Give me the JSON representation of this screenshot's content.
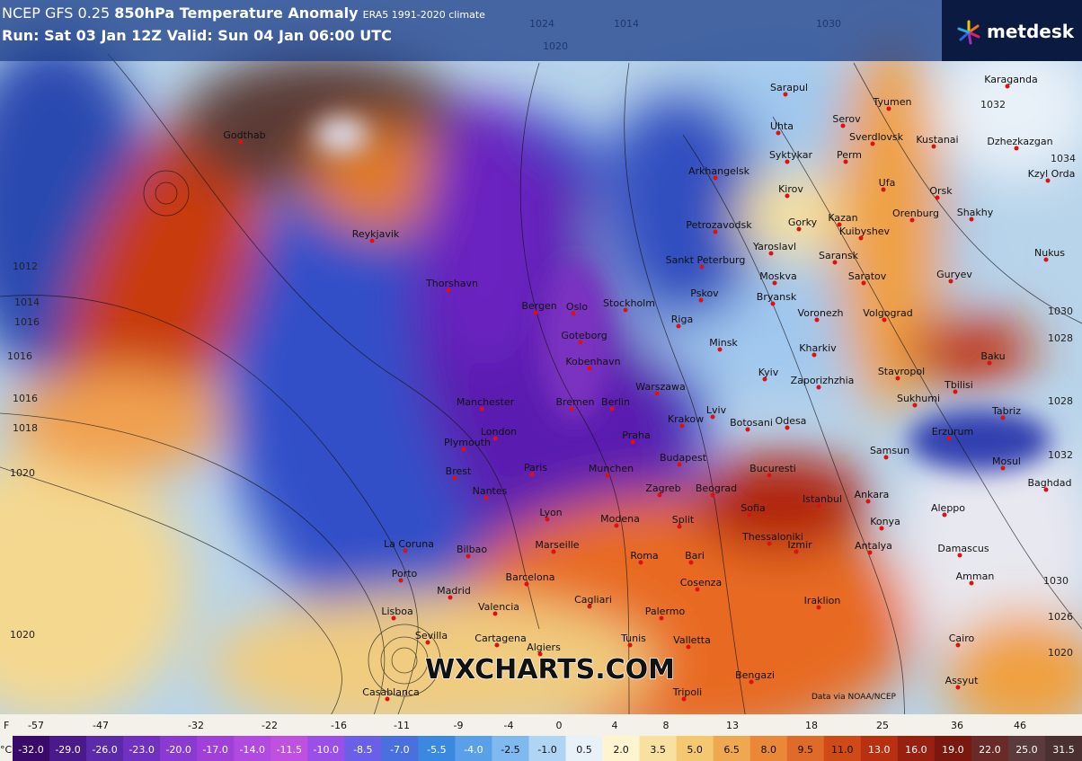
{
  "header": {
    "model": "NCEP GFS 0.25",
    "title": "850hPa Temperature Anomaly",
    "climate": "ERA5 1991-2020 climate",
    "run": "Run: Sat 03 Jan 12Z Valid: Sun 04 Jan 06:00 UTC",
    "brand": "metdesk"
  },
  "watermark": "WXCHARTS.COM",
  "credit": "Data via NOAA/NCEP",
  "isobars": [
    1012,
    1014,
    1016,
    1016,
    1016,
    1018,
    1020,
    1020,
    1024,
    1020,
    1014,
    1030,
    1032,
    1034,
    1030,
    1028,
    1028,
    1032,
    1030,
    1026,
    1020
  ],
  "cities": [
    "Sarapul",
    "Tyumen",
    "Karaganda",
    "Uhta",
    "Serov",
    "Sverdlovsk",
    "Kustanai",
    "Dzhezkazgan",
    "Arkhangelsk",
    "Syktykar",
    "Perm",
    "Ufa",
    "Orsk",
    "Kzyl Orda",
    "Kirov",
    "Gorky",
    "Kazan",
    "Orenburg",
    "Shakhy",
    "Petrozavodsk",
    "Yaroslavl",
    "Kuibyshev",
    "Saransk",
    "Nukus",
    "Sankt Peterburg",
    "Moskva",
    "Saratov",
    "Guryev",
    "Pskov",
    "Bryansk",
    "Voronezh",
    "Volgograd",
    "Riga",
    "Minsk",
    "Kharkiv",
    "Baku",
    "Reykjavik",
    "Godthab",
    "Thorshavn",
    "Bergen",
    "Oslo",
    "Stockholm",
    "Goteborg",
    "Kobenhavn",
    "Kyiv",
    "Zaporizhzhia",
    "Stavropol",
    "Tbilisi",
    "Sukhumi",
    "Warszawa",
    "Lviv",
    "Odesa",
    "Botosani",
    "Krakow",
    "Erzurum",
    "Tabriz",
    "Manchester",
    "Bremen",
    "Berlin",
    "London",
    "Praha",
    "Plymouth",
    "Brest",
    "Paris",
    "Munchen",
    "Budapest",
    "Bucuresti",
    "Samsun",
    "Mosul",
    "Baghdad",
    "Nantes",
    "Zagreb",
    "Beograd",
    "Istanbul",
    "Ankara",
    "Sofia",
    "Aleppo",
    "Lyon",
    "Modena",
    "Split",
    "Konya",
    "Thessaloniki",
    "Izmir",
    "Antalya",
    "Damascus",
    "Marseille",
    "Bilbao",
    "Roma",
    "Bari",
    "La Coruna",
    "Porto",
    "Barcelona",
    "Amman",
    "Madrid",
    "Cosenza",
    "Cagliari",
    "Iraklion",
    "Palermo",
    "Lisboa",
    "Valencia",
    "Sevilla",
    "Cartagena",
    "Tunis",
    "Valletta",
    "Algiers",
    "Cairo",
    "Bengazi",
    "Assyut",
    "Tripoli",
    "Casablanca"
  ],
  "legend": {
    "f_unit": "F",
    "f_labels": [
      -57,
      -47,
      -32,
      -22,
      -16,
      -11,
      -9,
      -4,
      0,
      4,
      8,
      13,
      18,
      25,
      36,
      46
    ],
    "c_unit": "°C",
    "c_labels": [
      "-32.0",
      "-29.0",
      "-26.0",
      "-23.0",
      "-20.0",
      "-17.0",
      "-14.0",
      "-11.5",
      "-10.0",
      "-8.5",
      "-7.0",
      "-5.5",
      "-4.0",
      "-2.5",
      "-1.0",
      "0.5",
      "2.0",
      "3.5",
      "5.0",
      "6.5",
      "8.0",
      "9.5",
      "11.0",
      "13.0",
      "16.0",
      "19.0",
      "22.0",
      "25.0",
      "31.5"
    ],
    "colors": [
      "#3a0a6a",
      "#4a1a8a",
      "#5a2aa8",
      "#7030c0",
      "#8a3ad0",
      "#a040d8",
      "#b04ae0",
      "#c050e0",
      "#9a50e8",
      "#6a60e8",
      "#4a70e0",
      "#3a88e0",
      "#5aa0e8",
      "#80b8f0",
      "#b0d4f4",
      "#e8f0f8",
      "#fff4d0",
      "#f8e0a0",
      "#f4c870",
      "#f0a850",
      "#ea8838",
      "#e06a28",
      "#d04a18",
      "#b83010",
      "#982010",
      "#7a1810",
      "#6a2a28",
      "#5a3a3a",
      "#4a3030"
    ]
  }
}
